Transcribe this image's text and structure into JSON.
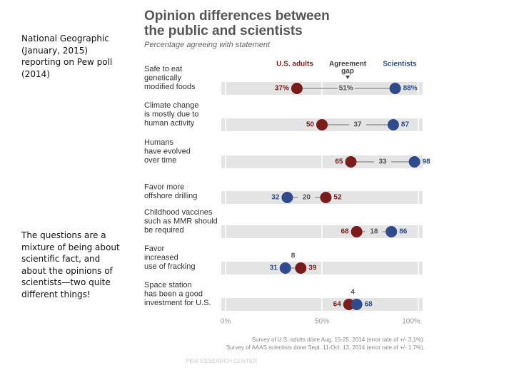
{
  "slide": {
    "caption_top": "National Geographic (January,  2015) reporting on Pew poll (2014)",
    "caption_bottom": "The questions are a mixture of being about scientific fact, and about the opinions of scientists—two quite different things!"
  },
  "chart_data": {
    "type": "dumbbell",
    "title": [
      "Opinion differences between",
      "the public and scientists"
    ],
    "subtitle": "Percentage agreeing with statement",
    "categories": [
      [
        "Safe to eat",
        "genetically",
        "modified foods"
      ],
      [
        "Climate change",
        "is mostly due to",
        "human activity"
      ],
      [
        "Humans",
        "have evolved",
        "over time"
      ],
      [
        "Favor more",
        "offshore drilling"
      ],
      [
        "Childhood vaccines",
        "such as MMR should",
        "be required"
      ],
      [
        "Favor",
        "increased",
        "use of fracking"
      ],
      [
        "Space station",
        "has been a good",
        "investment for U.S."
      ]
    ],
    "series": [
      {
        "name": "U.S. adults",
        "color": "#7b1c1c",
        "values": [
          37,
          50,
          65,
          52,
          68,
          39,
          64
        ],
        "value_labels": [
          "37%",
          "50",
          "65",
          "52",
          "68",
          "39",
          "64"
        ]
      },
      {
        "name": "Scientists",
        "color": "#2f4b8c",
        "values": [
          88,
          87,
          98,
          32,
          86,
          31,
          68
        ],
        "value_labels": [
          "88%",
          "87",
          "98",
          "32",
          "86",
          "31",
          "68"
        ]
      }
    ],
    "gap": {
      "name": [
        "Agreement",
        "gap"
      ],
      "values": [
        51,
        37,
        33,
        20,
        18,
        8,
        4
      ],
      "value_labels": [
        "51%",
        "37",
        "33",
        "20",
        "18",
        "8",
        "4"
      ]
    },
    "xlim": [
      0,
      100
    ],
    "xticks": [
      {
        "value": 0,
        "label": "0%"
      },
      {
        "value": 50,
        "label": "50%"
      },
      {
        "value": 100,
        "label": "100%"
      }
    ],
    "notes": [
      "Survey of U.S. adults done Aug. 15-25, 2014 (error rate of +/- 3.1%).",
      "Survey of AAAS scientists done Sept. 11-Oct. 13, 2014 (error rate of +/- 1.7%)."
    ],
    "source": "PEW RESEARCH CENTER"
  }
}
